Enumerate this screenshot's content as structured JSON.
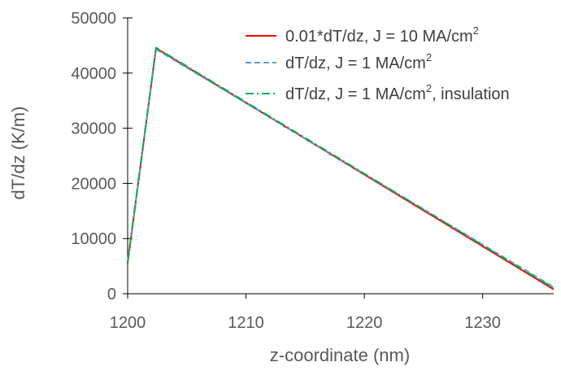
{
  "chart_data": {
    "type": "line",
    "title": "",
    "xlabel": "z-coordinate (nm)",
    "ylabel": "dT/dz  (K/m)",
    "xlim": [
      1200,
      1236
    ],
    "ylim": [
      0,
      50000
    ],
    "xticks": [
      1200,
      1210,
      1220,
      1230
    ],
    "yticks": [
      0,
      10000,
      20000,
      30000,
      40000,
      50000
    ],
    "xtick_labels": [
      "1200",
      "1210",
      "1220",
      "1230"
    ],
    "ytick_labels": [
      "0",
      "10000",
      "20000",
      "30000",
      "40000",
      "50000"
    ],
    "grid": false,
    "legend_position": "top-right",
    "series": [
      {
        "name_main": "0.01*dT/dz, J = 10 MA/cm",
        "name_sup": "2",
        "name_tail": "",
        "color": "#ff0000",
        "dash": "solid",
        "x": [
          1200,
          1202.4,
          1236
        ],
        "y": [
          5500,
          44500,
          800
        ]
      },
      {
        "name_main": "dT/dz, J = 1 MA/cm",
        "name_sup": "2",
        "name_tail": "",
        "color": "#5b9bd5",
        "dash": "dash",
        "x": [
          1200,
          1202.4,
          1236
        ],
        "y": [
          5700,
          44300,
          1200
        ]
      },
      {
        "name_main": "dT/dz, J = 1 MA/cm",
        "name_sup": "2",
        "name_tail": ", insulation",
        "color": "#00b050",
        "dash": "dashdot",
        "x": [
          1200,
          1202.4,
          1236
        ],
        "y": [
          5800,
          44600,
          1000
        ]
      }
    ]
  }
}
